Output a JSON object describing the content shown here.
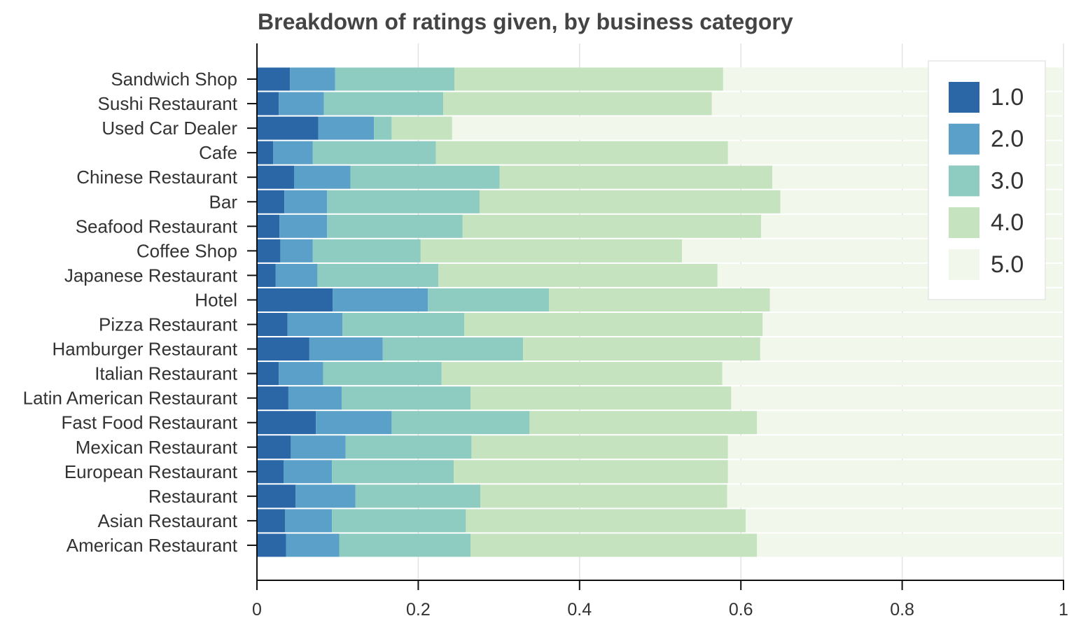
{
  "chart_data": {
    "type": "bar",
    "orientation": "horizontal",
    "stacked": true,
    "title": "Breakdown of ratings given, by business category",
    "xlabel": "",
    "ylabel": "",
    "xlim": [
      0,
      1
    ],
    "x_ticks": [
      "0",
      "0.2",
      "0.4",
      "0.6",
      "0.8",
      "1"
    ],
    "x_tick_values": [
      0,
      0.2,
      0.4,
      0.6,
      0.8,
      1
    ],
    "grid": true,
    "legend_position": "top-right",
    "categories": [
      "Sandwich Shop",
      "Sushi Restaurant",
      "Used Car Dealer",
      "Cafe",
      "Chinese Restaurant",
      "Bar",
      "Seafood Restaurant",
      "Coffee Shop",
      "Japanese Restaurant",
      "Hotel",
      "Pizza Restaurant",
      "Hamburger Restaurant",
      "Italian Restaurant",
      "Latin American Restaurant",
      "Fast Food Restaurant",
      "Mexican Restaurant",
      "European Restaurant",
      "Restaurant",
      "Asian Restaurant",
      "American Restaurant"
    ],
    "series": [
      {
        "name": "1.0",
        "color": "#2b67a6",
        "values": [
          0.041,
          0.027,
          0.076,
          0.02,
          0.046,
          0.034,
          0.028,
          0.029,
          0.023,
          0.094,
          0.038,
          0.065,
          0.027,
          0.039,
          0.073,
          0.042,
          0.033,
          0.048,
          0.035,
          0.036
        ]
      },
      {
        "name": "2.0",
        "color": "#5aa0c8",
        "values": [
          0.056,
          0.056,
          0.069,
          0.049,
          0.07,
          0.053,
          0.059,
          0.04,
          0.052,
          0.118,
          0.068,
          0.091,
          0.055,
          0.066,
          0.094,
          0.068,
          0.06,
          0.074,
          0.058,
          0.066
        ]
      },
      {
        "name": "3.0",
        "color": "#8ecbc0",
        "values": [
          0.148,
          0.148,
          0.022,
          0.153,
          0.185,
          0.189,
          0.168,
          0.134,
          0.15,
          0.15,
          0.151,
          0.174,
          0.147,
          0.16,
          0.171,
          0.156,
          0.151,
          0.155,
          0.166,
          0.163
        ]
      },
      {
        "name": "4.0",
        "color": "#c4e3be",
        "values": [
          0.333,
          0.333,
          0.075,
          0.362,
          0.338,
          0.373,
          0.37,
          0.324,
          0.346,
          0.274,
          0.37,
          0.294,
          0.348,
          0.323,
          0.282,
          0.318,
          0.34,
          0.306,
          0.347,
          0.355
        ]
      },
      {
        "name": "5.0",
        "color": "#f1f7ea",
        "values": [
          0.422,
          0.436,
          0.758,
          0.416,
          0.361,
          0.351,
          0.375,
          0.473,
          0.429,
          0.364,
          0.373,
          0.376,
          0.423,
          0.412,
          0.38,
          0.416,
          0.416,
          0.417,
          0.394,
          0.38
        ]
      }
    ]
  }
}
